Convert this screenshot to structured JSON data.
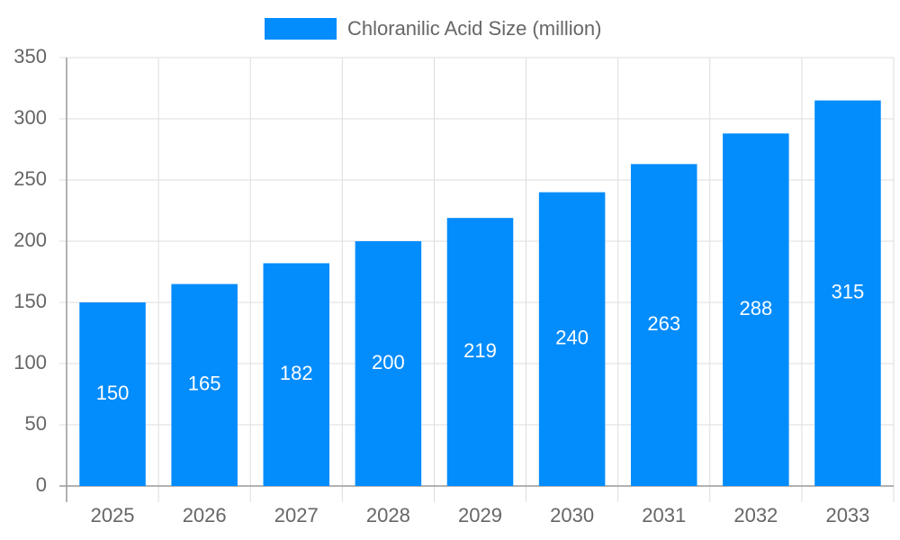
{
  "chart_data": {
    "type": "bar",
    "categories": [
      "2025",
      "2026",
      "2027",
      "2028",
      "2029",
      "2030",
      "2031",
      "2032",
      "2033"
    ],
    "series": [
      {
        "name": "Chloranilic Acid Size (million)",
        "color": "#038cfc",
        "values": [
          150,
          165,
          182,
          200,
          219,
          240,
          263,
          288,
          315
        ]
      }
    ],
    "ylim": [
      0,
      350
    ],
    "yticks": [
      0,
      50,
      100,
      150,
      200,
      250,
      300,
      350
    ],
    "grid": true,
    "legend": "top"
  }
}
